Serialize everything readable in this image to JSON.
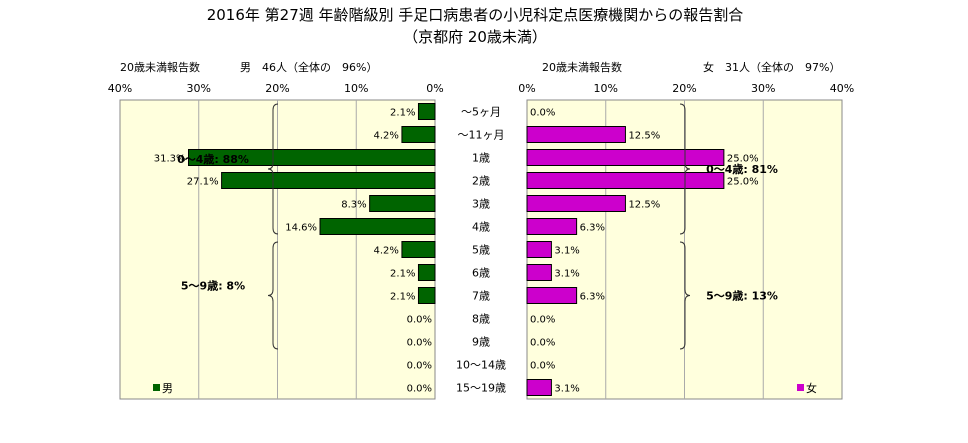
{
  "chart_data": {
    "type": "bar",
    "title": "2016年 第27週 年齢階級別 手足口病患者の小児科定点医療機関からの報告割合",
    "subtitle": "（京都府 20歳未満）",
    "categories": [
      "～5ヶ月",
      "～11ヶ月",
      "1歳",
      "2歳",
      "3歳",
      "4歳",
      "5歳",
      "6歳",
      "7歳",
      "8歳",
      "9歳",
      "10～14歳",
      "15～19歳"
    ],
    "axis_ticks": [
      "40%",
      "30%",
      "20%",
      "10%",
      "0%",
      "0%",
      "10%",
      "20%",
      "30%",
      "40%"
    ],
    "xlim": [
      0,
      40
    ],
    "grid": true,
    "series": [
      {
        "name": "男",
        "side": "left",
        "color": "#006400",
        "values": [
          2.1,
          4.2,
          31.3,
          27.1,
          8.3,
          14.6,
          4.2,
          2.1,
          2.1,
          0.0,
          0.0,
          0.0,
          0.0
        ],
        "value_labels": [
          "2.1%",
          "4.2%",
          "31.3%",
          "27.1%",
          "8.3%",
          "14.6%",
          "4.2%",
          "2.1%",
          "2.1%",
          "0.0%",
          "0.0%",
          "0.0%",
          "0.0%"
        ],
        "header": {
          "left": "20歳未満報告数",
          "right": "男　46人（全体の　96%）"
        },
        "groups": [
          {
            "label": "0～4歳: 88%",
            "from": 0,
            "to": 5
          },
          {
            "label": "5～9歳: 8%",
            "from": 6,
            "to": 10
          }
        ],
        "legend": "男"
      },
      {
        "name": "女",
        "side": "right",
        "color": "#CC00CC",
        "values": [
          0.0,
          12.5,
          25.0,
          25.0,
          12.5,
          6.3,
          3.1,
          3.1,
          6.3,
          0.0,
          0.0,
          0.0,
          3.1
        ],
        "value_labels": [
          "0.0%",
          "12.5%",
          "25.0%",
          "25.0%",
          "12.5%",
          "6.3%",
          "3.1%",
          "3.1%",
          "6.3%",
          "0.0%",
          "0.0%",
          "0.0%",
          "3.1%"
        ],
        "header": {
          "left": "20歳未満報告数",
          "right": "女　31人（全体の　97%）"
        },
        "groups": [
          {
            "label": "0～4歳: 81%",
            "from": 0,
            "to": 5
          },
          {
            "label": "5～9歳: 13%",
            "from": 6,
            "to": 10
          }
        ],
        "legend": "女"
      }
    ]
  }
}
